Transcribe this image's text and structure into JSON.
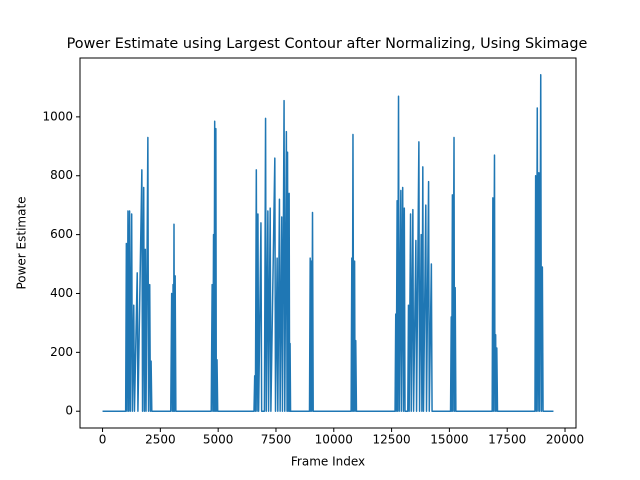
{
  "chart_data": {
    "type": "line",
    "title": "Power Estimate using Largest Contour after Normalizing, Using Skimage",
    "x_label": "Frame Index",
    "y_label": "Power Estimate",
    "xlim": [
      -975,
      20475
    ],
    "ylim": [
      -57,
      1200
    ],
    "xticks": [
      0,
      2500,
      5000,
      7500,
      10000,
      12500,
      15000,
      17500,
      20000
    ],
    "yticks": [
      0,
      200,
      400,
      600,
      800,
      1000
    ],
    "grid": false,
    "series": [
      {
        "color": "#1f77b4",
        "x": [
          0,
          1000,
          1030,
          1060,
          1100,
          1130,
          1170,
          1200,
          1260,
          1290,
          1350,
          1380,
          1500,
          1530,
          1700,
          1730,
          1780,
          1810,
          1850,
          1880,
          1960,
          1990,
          2040,
          2070,
          2100,
          2130,
          2950,
          2990,
          3020,
          3050,
          3070,
          3090,
          3110,
          3140,
          3170,
          4700,
          4740,
          4770,
          4800,
          4820,
          4850,
          4870,
          4900,
          4920,
          4950,
          4980,
          6550,
          6580,
          6610,
          6650,
          6680,
          6720,
          6750,
          6850,
          6880,
          7000,
          7050,
          7080,
          7150,
          7180,
          7250,
          7280,
          7450,
          7480,
          7550,
          7580,
          7650,
          7680,
          7750,
          7780,
          7850,
          7880,
          7950,
          7980,
          8000,
          8030,
          8070,
          8090,
          8110,
          8130,
          8950,
          8980,
          9000,
          9030,
          9050,
          9080,
          9110,
          10750,
          10780,
          10800,
          10830,
          10860,
          10900,
          10920,
          10950,
          10980,
          12650,
          12680,
          12700,
          12740,
          12760,
          12800,
          12830,
          12900,
          12920,
          12980,
          13010,
          13050,
          13080,
          13200,
          13230,
          13260,
          13320,
          13350,
          13420,
          13450,
          13550,
          13580,
          13680,
          13710,
          13780,
          13810,
          13850,
          13880,
          13980,
          14010,
          14100,
          14130,
          14220,
          14250,
          15050,
          15080,
          15100,
          15130,
          15150,
          15200,
          15220,
          15250,
          15280,
          16850,
          16880,
          16900,
          16950,
          16970,
          17000,
          17020,
          17050,
          17080,
          18700,
          18730,
          18760,
          18800,
          18830,
          18870,
          18900,
          18950,
          18980,
          19020,
          19050,
          19500
        ],
        "values": [
          0,
          0,
          570,
          0,
          680,
          0,
          680,
          0,
          670,
          0,
          360,
          0,
          470,
          0,
          820,
          0,
          760,
          0,
          550,
          0,
          930,
          0,
          430,
          0,
          170,
          0,
          0,
          400,
          0,
          430,
          0,
          635,
          0,
          460,
          0,
          0,
          430,
          0,
          600,
          0,
          985,
          0,
          960,
          0,
          175,
          0,
          0,
          120,
          0,
          820,
          0,
          670,
          0,
          640,
          0,
          0,
          995,
          0,
          680,
          0,
          690,
          0,
          860,
          0,
          520,
          0,
          720,
          0,
          660,
          0,
          1055,
          0,
          950,
          0,
          880,
          0,
          740,
          0,
          230,
          0,
          0,
          520,
          0,
          510,
          0,
          675,
          0,
          0,
          520,
          0,
          940,
          0,
          510,
          0,
          240,
          0,
          0,
          330,
          0,
          715,
          0,
          1070,
          0,
          750,
          0,
          760,
          0,
          690,
          0,
          0,
          360,
          0,
          670,
          0,
          685,
          0,
          580,
          0,
          915,
          0,
          600,
          0,
          830,
          0,
          700,
          0,
          780,
          0,
          500,
          0,
          0,
          320,
          0,
          735,
          0,
          930,
          0,
          420,
          0,
          0,
          725,
          0,
          870,
          0,
          260,
          0,
          215,
          0,
          0,
          800,
          0,
          1030,
          0,
          810,
          0,
          1143,
          0,
          490,
          0,
          0
        ]
      }
    ]
  }
}
